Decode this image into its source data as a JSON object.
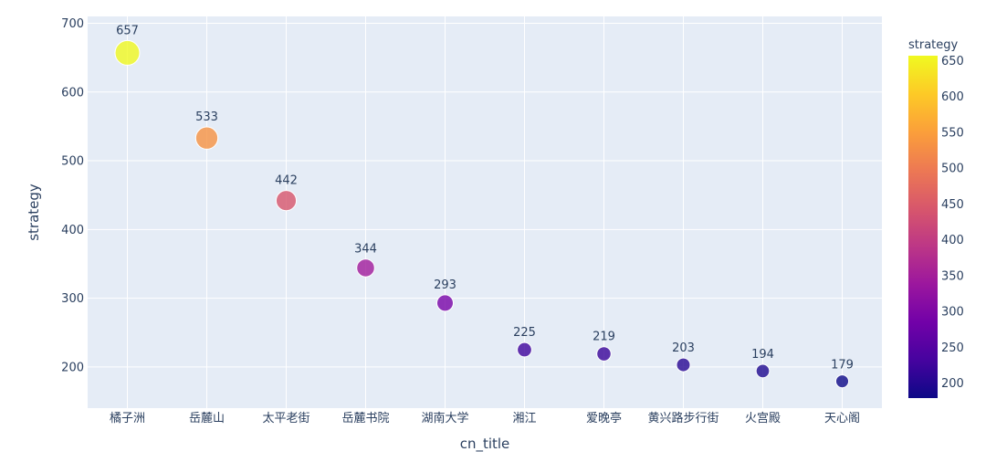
{
  "chart_data": {
    "type": "scatter",
    "title": "",
    "xlabel": "cn_title",
    "ylabel": "strategy",
    "categories": [
      "橘子洲",
      "岳麓山",
      "太平老街",
      "岳麓书院",
      "湖南大学",
      "湘江",
      "爱晚亭",
      "黄兴路步行街",
      "火宫殿",
      "天心阁"
    ],
    "values": [
      657,
      533,
      442,
      344,
      293,
      225,
      219,
      203,
      194,
      179
    ],
    "ylim": [
      140,
      710
    ],
    "yticks": [
      200,
      300,
      400,
      500,
      600,
      700
    ],
    "grid": true,
    "marker_size_by": "strategy",
    "color_by": "strategy",
    "colorbar": {
      "title": "strategy",
      "range": [
        179,
        657
      ],
      "ticks": [
        200,
        250,
        300,
        350,
        400,
        450,
        500,
        550,
        600,
        650
      ],
      "position": "right",
      "colorscale": [
        "#0d0887",
        "#46039f",
        "#7201a8",
        "#9c179e",
        "#bd3786",
        "#d8576b",
        "#ed7953",
        "#fb9f3a",
        "#fdca26",
        "#f0f921"
      ]
    },
    "plot_background": "#e5ecf6",
    "gridline_color": "#ffffff"
  }
}
